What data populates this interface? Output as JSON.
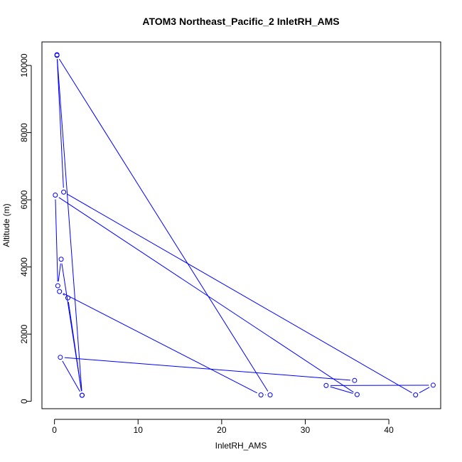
{
  "chart_data": {
    "type": "line",
    "title": "ATOM3 Northeast_Pacific_2 InletRH_AMS",
    "xlabel": "InletRH_AMS",
    "ylabel": "Altitude (m)",
    "xlim": [
      -1.5,
      46.2
    ],
    "ylim": [
      -220,
      10700
    ],
    "xticks": [
      0,
      10,
      20,
      30,
      40
    ],
    "yticks": [
      0,
      2000,
      4000,
      6000,
      8000,
      10000
    ],
    "grid": false,
    "markers": "open-circle",
    "line_color": "#0000ff",
    "series": [
      {
        "points": [
          {
            "x": 0.3,
            "y": 10320
          },
          {
            "x": 1.1,
            "y": 6230
          },
          {
            "x": 43.2,
            "y": 190
          },
          {
            "x": 45.3,
            "y": 480
          },
          {
            "x": 32.5,
            "y": 470
          },
          {
            "x": 36.2,
            "y": 200
          },
          {
            "x": 0.1,
            "y": 6140
          },
          {
            "x": 0.4,
            "y": 3440
          },
          {
            "x": 0.8,
            "y": 4230
          },
          {
            "x": 3.3,
            "y": 180
          },
          {
            "x": 1.6,
            "y": 3080
          },
          {
            "x": 0.6,
            "y": 3270
          },
          {
            "x": 24.7,
            "y": 190
          },
          {
            "x": 25.8,
            "y": 190
          },
          {
            "x": 0.3,
            "y": 10300
          },
          {
            "x": 3.3,
            "y": 180
          },
          {
            "x": 0.7,
            "y": 1310
          },
          {
            "x": 35.9,
            "y": 620
          }
        ]
      }
    ]
  }
}
